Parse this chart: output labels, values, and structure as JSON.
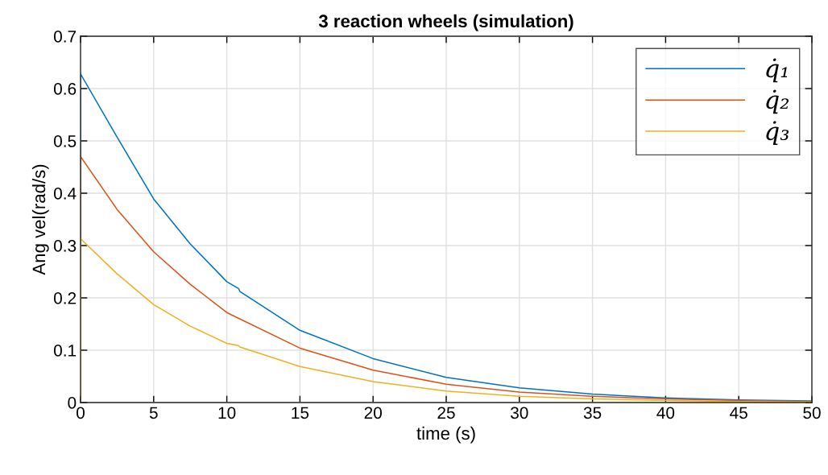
{
  "chart_data": {
    "type": "line",
    "title": "3 reaction wheels (simulation)",
    "xlabel": "time (s)",
    "ylabel": "Ang vel(rad/s)",
    "series": [
      {
        "name": "q̇₁",
        "color": "#0072bd",
        "x": [
          0,
          0,
          2.5,
          5,
          7.5,
          10,
          10.8,
          10.9,
          15,
          20,
          25,
          30,
          35,
          40,
          45,
          50
        ],
        "values": [
          0,
          0.628,
          0.507,
          0.389,
          0.303,
          0.231,
          0.218,
          0.212,
          0.138,
          0.084,
          0.048,
          0.028,
          0.016,
          0.009,
          0.005,
          0.003
        ]
      },
      {
        "name": "q̇₂",
        "color": "#d95319",
        "x": [
          0,
          0,
          2.5,
          5,
          7.5,
          10,
          15,
          20,
          25,
          30,
          35,
          40,
          45,
          50
        ],
        "values": [
          0,
          0.47,
          0.369,
          0.288,
          0.226,
          0.172,
          0.104,
          0.062,
          0.035,
          0.02,
          0.012,
          0.007,
          0.004,
          0.002
        ]
      },
      {
        "name": "q̇₃",
        "color": "#edb120",
        "x": [
          0,
          0,
          2.5,
          5,
          7.5,
          10,
          10.8,
          10.9,
          15,
          20,
          25,
          30,
          35,
          40,
          45,
          50
        ],
        "values": [
          0,
          0.313,
          0.246,
          0.187,
          0.146,
          0.113,
          0.109,
          0.106,
          0.069,
          0.04,
          0.022,
          0.012,
          0.007,
          0.004,
          0.002,
          0.001
        ]
      }
    ],
    "xlim": [
      0,
      50
    ],
    "xticks": [
      0,
      5,
      10,
      15,
      20,
      25,
      30,
      35,
      40,
      45,
      50
    ],
    "ylim": [
      0,
      0.7
    ],
    "yticks": [
      0,
      0.1,
      0.2,
      0.3,
      0.4,
      0.5,
      0.6,
      0.7
    ],
    "grid": true,
    "legend": "top right",
    "line_style": "solid",
    "marker": "none"
  }
}
